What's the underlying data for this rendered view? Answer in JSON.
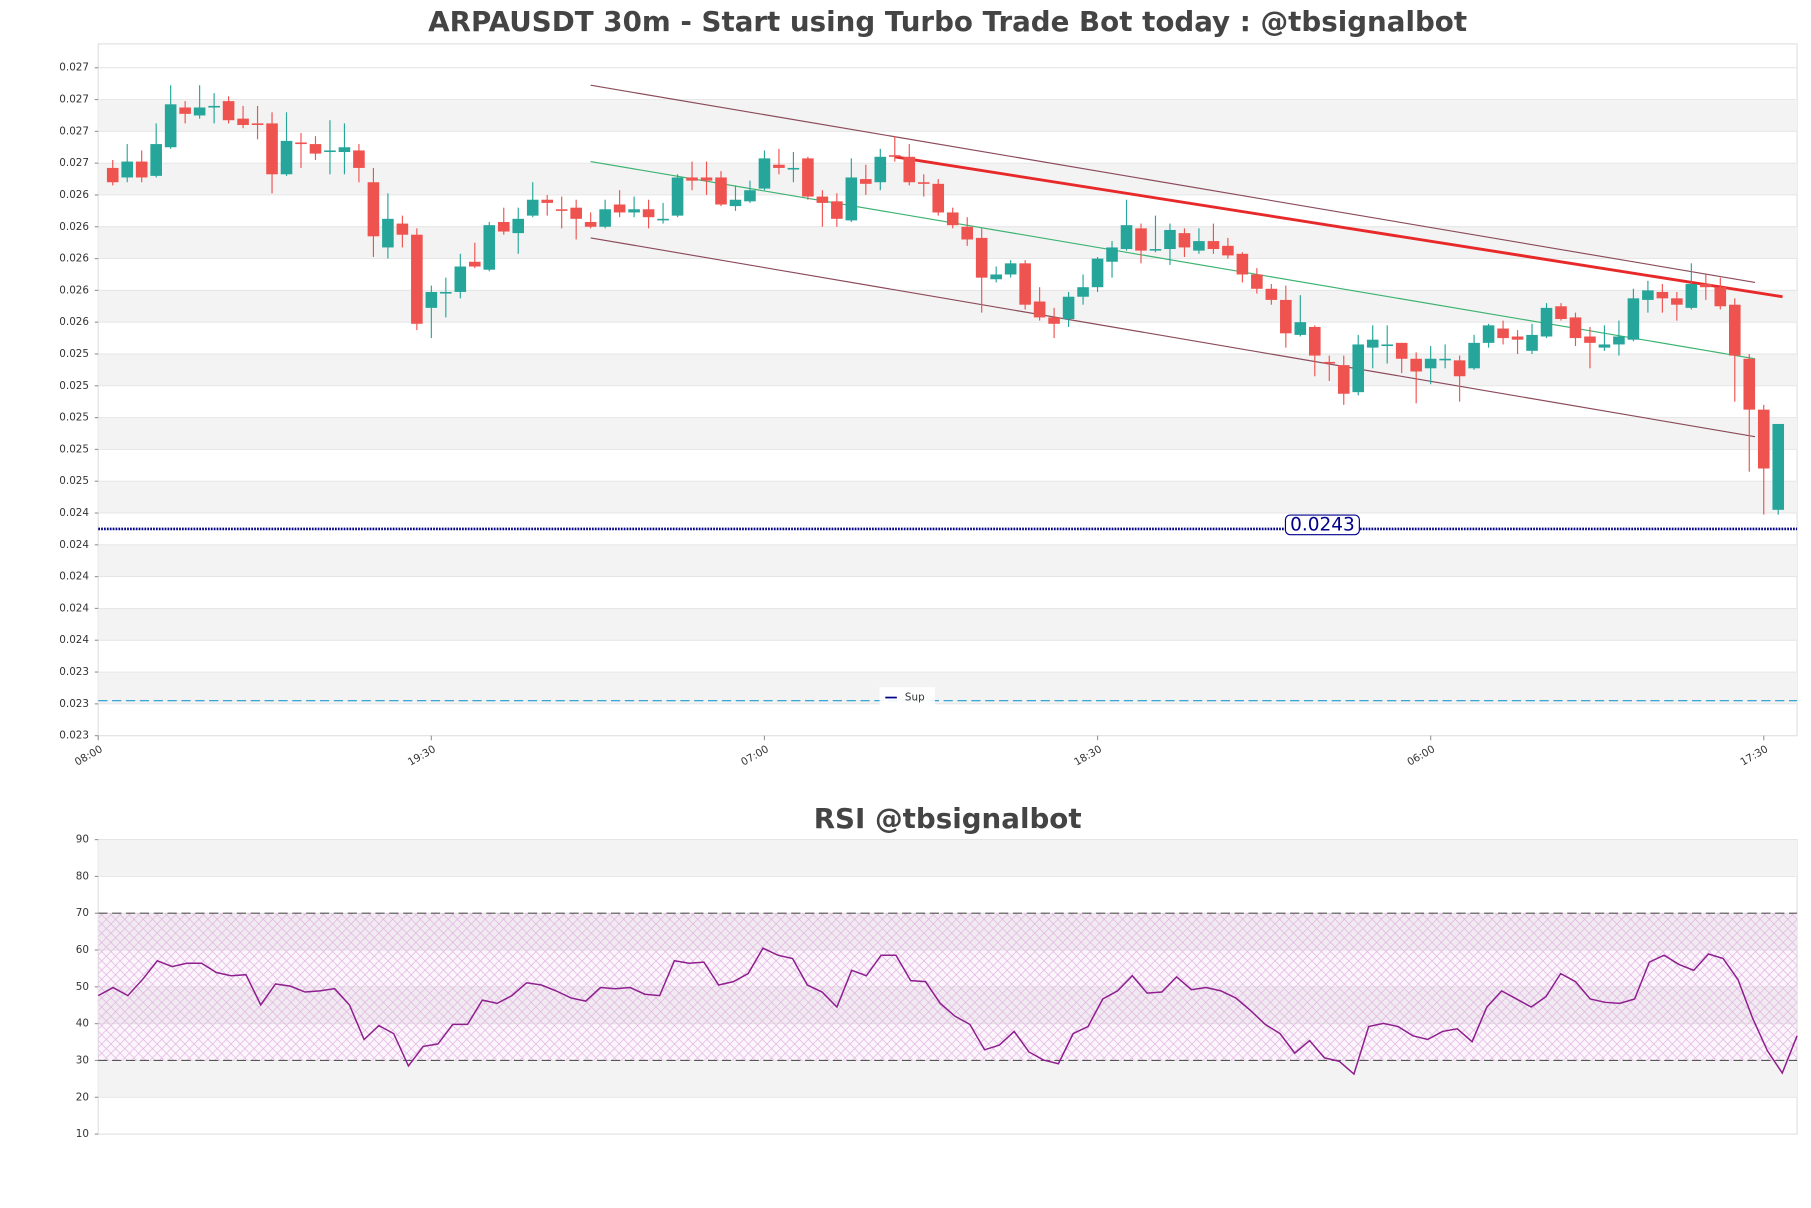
{
  "chart_data": [
    {
      "type": "candlestick",
      "title": "ARPAUSDT 30m - Start using Turbo Trade Bot today : @tbsignalbot",
      "x": [
        1,
        2,
        3,
        4,
        5,
        6,
        7,
        8,
        9,
        10,
        11,
        12,
        13,
        14,
        15,
        16,
        17,
        18,
        19,
        20,
        21,
        22,
        23,
        24,
        25,
        26,
        27,
        28,
        29,
        30,
        31,
        32,
        33,
        34,
        35,
        36,
        37,
        38,
        39,
        40,
        41,
        42,
        43,
        44,
        45,
        46,
        47,
        48,
        49,
        50,
        51,
        52,
        53,
        54,
        55,
        56,
        57,
        58,
        59,
        60,
        61,
        62,
        63,
        64,
        65,
        66,
        67,
        68,
        69,
        70,
        71,
        72,
        73,
        74,
        75,
        76,
        77,
        78,
        79,
        80,
        81,
        82,
        83,
        84,
        85,
        86,
        87,
        88,
        89,
        90,
        91,
        92,
        93,
        94,
        95,
        96,
        97,
        98,
        99,
        100,
        101,
        102,
        103,
        104,
        105,
        106,
        107,
        108,
        109,
        110,
        111,
        112,
        113,
        114,
        115,
        116
      ],
      "open": [
        0.02657,
        0.02651,
        0.02661,
        0.02652,
        0.0267,
        0.02695,
        0.0269,
        0.02695,
        0.02699,
        0.02688,
        0.02685,
        0.02685,
        0.02653,
        0.02673,
        0.02672,
        0.02667,
        0.02667,
        0.02668,
        0.02648,
        0.02607,
        0.02622,
        0.02615,
        0.02569,
        0.02578,
        0.02579,
        0.02598,
        0.02593,
        0.02623,
        0.02616,
        0.02627,
        0.02637,
        0.02631,
        0.02632,
        0.02623,
        0.0262,
        0.02634,
        0.02629,
        0.02631,
        0.02624,
        0.02627,
        0.02651,
        0.02651,
        0.02651,
        0.02633,
        0.02636,
        0.02644,
        0.02659,
        0.02656,
        0.02663,
        0.02639,
        0.02636,
        0.02624,
        0.0265,
        0.02648,
        0.02665,
        0.02664,
        0.02648,
        0.02647,
        0.02629,
        0.0262,
        0.02613,
        0.02587,
        0.0259,
        0.02597,
        0.02573,
        0.02563,
        0.02562,
        0.02576,
        0.02582,
        0.02598,
        0.02606,
        0.02619,
        0.02605,
        0.02606,
        0.02616,
        0.02605,
        0.02611,
        0.02608,
        0.02603,
        0.0259,
        0.02581,
        0.02574,
        0.02552,
        0.02557,
        0.02535,
        0.02533,
        0.02516,
        0.02544,
        0.02545,
        0.02547,
        0.02537,
        0.02531,
        0.02536,
        0.02536,
        0.02531,
        0.02547,
        0.02556,
        0.02551,
        0.02542,
        0.02551,
        0.0257,
        0.02563,
        0.02551,
        0.02544,
        0.02546,
        0.02549,
        0.02574,
        0.02579,
        0.02575,
        0.02569,
        0.02584,
        0.02582,
        0.02571,
        0.02537,
        0.02505,
        0.02442
      ],
      "high": [
        0.02662,
        0.02672,
        0.02668,
        0.02685,
        0.02709,
        0.02699,
        0.02709,
        0.02704,
        0.02702,
        0.02696,
        0.02696,
        0.02692,
        0.02692,
        0.02679,
        0.02677,
        0.02687,
        0.02685,
        0.02672,
        0.02657,
        0.02641,
        0.02627,
        0.02619,
        0.02583,
        0.02588,
        0.02603,
        0.0261,
        0.02623,
        0.02632,
        0.02632,
        0.02648,
        0.0264,
        0.02639,
        0.02637,
        0.02629,
        0.02637,
        0.02643,
        0.02639,
        0.02637,
        0.02635,
        0.02653,
        0.02661,
        0.02661,
        0.02655,
        0.02646,
        0.02649,
        0.02668,
        0.02669,
        0.02667,
        0.02664,
        0.02643,
        0.02641,
        0.02663,
        0.02659,
        0.02669,
        0.02677,
        0.02672,
        0.02653,
        0.0265,
        0.02632,
        0.02626,
        0.02619,
        0.02595,
        0.02599,
        0.02599,
        0.02582,
        0.02569,
        0.02579,
        0.0259,
        0.02601,
        0.02611,
        0.02637,
        0.02622,
        0.02627,
        0.02622,
        0.02619,
        0.02619,
        0.02622,
        0.02613,
        0.02604,
        0.02594,
        0.02584,
        0.02583,
        0.02577,
        0.02558,
        0.02539,
        0.02539,
        0.02552,
        0.02558,
        0.02558,
        0.02547,
        0.02541,
        0.02545,
        0.02546,
        0.02539,
        0.02552,
        0.02559,
        0.02561,
        0.02555,
        0.02559,
        0.02572,
        0.02572,
        0.02566,
        0.02557,
        0.02558,
        0.02561,
        0.02581,
        0.02586,
        0.02584,
        0.02579,
        0.02597,
        0.0259,
        0.02588,
        0.02575,
        0.0254,
        0.02508,
        0.02496
      ],
      "low": [
        0.02646,
        0.02648,
        0.02648,
        0.02651,
        0.02669,
        0.02685,
        0.02688,
        0.02685,
        0.02685,
        0.02682,
        0.02675,
        0.02641,
        0.02652,
        0.02657,
        0.02662,
        0.02653,
        0.02653,
        0.02648,
        0.02601,
        0.026,
        0.02607,
        0.02555,
        0.0255,
        0.02563,
        0.02575,
        0.02594,
        0.02592,
        0.02615,
        0.02603,
        0.02626,
        0.02627,
        0.02619,
        0.02612,
        0.02619,
        0.02619,
        0.02626,
        0.02626,
        0.02619,
        0.02622,
        0.02626,
        0.02643,
        0.0264,
        0.02633,
        0.0263,
        0.02635,
        0.02643,
        0.02653,
        0.02648,
        0.02637,
        0.0262,
        0.0262,
        0.02623,
        0.0264,
        0.02643,
        0.02661,
        0.02646,
        0.02639,
        0.02627,
        0.02619,
        0.02608,
        0.02566,
        0.02585,
        0.02588,
        0.02568,
        0.02561,
        0.0255,
        0.02557,
        0.02571,
        0.02579,
        0.02588,
        0.02605,
        0.02597,
        0.02604,
        0.02596,
        0.02601,
        0.02603,
        0.02603,
        0.026,
        0.02585,
        0.02578,
        0.02571,
        0.02544,
        0.02551,
        0.02526,
        0.02523,
        0.02508,
        0.02514,
        0.02531,
        0.02534,
        0.02528,
        0.02509,
        0.02521,
        0.02531,
        0.0251,
        0.0253,
        0.02544,
        0.02546,
        0.0254,
        0.0254,
        0.0255,
        0.02561,
        0.02545,
        0.02531,
        0.02542,
        0.02539,
        0.02548,
        0.02566,
        0.02566,
        0.02561,
        0.02568,
        0.02574,
        0.02568,
        0.0251,
        0.02466,
        0.02439,
        0.02439
      ],
      "close": [
        0.02648,
        0.02661,
        0.02651,
        0.02672,
        0.02697,
        0.02691,
        0.02695,
        0.02696,
        0.02687,
        0.02684,
        0.02684,
        0.02653,
        0.02674,
        0.02672,
        0.02666,
        0.02668,
        0.0267,
        0.02657,
        0.02614,
        0.02625,
        0.02615,
        0.02559,
        0.02579,
        0.02579,
        0.02595,
        0.02595,
        0.02621,
        0.02617,
        0.02625,
        0.02637,
        0.02635,
        0.0263,
        0.02625,
        0.0262,
        0.02631,
        0.02629,
        0.02631,
        0.02626,
        0.02625,
        0.02651,
        0.02649,
        0.02649,
        0.02634,
        0.02637,
        0.02643,
        0.02663,
        0.02657,
        0.02657,
        0.02639,
        0.02635,
        0.02625,
        0.02651,
        0.02647,
        0.02664,
        0.02664,
        0.02648,
        0.02647,
        0.02629,
        0.02621,
        0.02612,
        0.02588,
        0.0259,
        0.02597,
        0.02571,
        0.02563,
        0.02559,
        0.02576,
        0.02582,
        0.026,
        0.02607,
        0.02621,
        0.02605,
        0.02606,
        0.02618,
        0.02607,
        0.02611,
        0.02606,
        0.02602,
        0.0259,
        0.02581,
        0.02574,
        0.02553,
        0.0256,
        0.02539,
        0.02534,
        0.02515,
        0.02546,
        0.02549,
        0.02546,
        0.02537,
        0.02529,
        0.02537,
        0.02537,
        0.02526,
        0.02547,
        0.02558,
        0.0255,
        0.02549,
        0.02552,
        0.02569,
        0.02562,
        0.0255,
        0.02547,
        0.02546,
        0.02551,
        0.02575,
        0.0258,
        0.02575,
        0.02571,
        0.02584,
        0.02582,
        0.0257,
        0.02539,
        0.02505,
        0.02468,
        0.02496
      ],
      "up_color": "#26a69a",
      "down_color": "#ef5350",
      "xlim": [
        0,
        117.3
      ],
      "xticks": [
        {
          "value": 0,
          "label": "08:00"
        },
        {
          "value": 23,
          "label": "19:30"
        },
        {
          "value": 46,
          "label": "07:00"
        },
        {
          "value": 69,
          "label": "18:30"
        },
        {
          "value": 92,
          "label": "06:00"
        },
        {
          "value": 115,
          "label": "17:30"
        }
      ],
      "ylim": [
        0.023,
        0.02735
      ],
      "yticks": [
        0.023,
        {
          "value": 0.0232,
          "label": "0.023"
        },
        {
          "value": 0.0234,
          "label": "0.023"
        },
        {
          "value": 0.0236,
          "label": "0.024"
        },
        {
          "value": 0.0238,
          "label": "0.024"
        },
        0.024,
        {
          "value": 0.0242,
          "label": "0.024"
        },
        {
          "value": 0.0244,
          "label": "0.024"
        },
        {
          "value": 0.0246,
          "label": "0.025"
        },
        {
          "value": 0.0248,
          "label": "0.025"
        },
        0.025,
        {
          "value": 0.0252,
          "label": "0.025"
        },
        {
          "value": 0.0254,
          "label": "0.025"
        },
        {
          "value": 0.0256,
          "label": "0.026"
        },
        {
          "value": 0.0258,
          "label": "0.026"
        },
        0.026,
        {
          "value": 0.0262,
          "label": "0.026"
        },
        {
          "value": 0.0264,
          "label": "0.026"
        },
        {
          "value": 0.0266,
          "label": "0.027"
        },
        {
          "value": 0.0268,
          "label": "0.027"
        },
        0.027,
        {
          "value": 0.0272,
          "label": "0.027"
        }
      ],
      "trendlines": [
        {
          "color": "#8b4a5a",
          "width": 1,
          "x": [
            34,
            114.4
          ],
          "values": [
            0.02709,
            0.02585
          ]
        },
        {
          "color": "#8b4a5a",
          "width": 1,
          "x": [
            34,
            114.4
          ],
          "values": [
            0.02613,
            0.02488
          ]
        },
        {
          "color": "#3cb371",
          "width": 1,
          "x": [
            34,
            114.4
          ],
          "values": [
            0.02661,
            0.02537
          ]
        },
        {
          "color": "#e8292a",
          "width": 2.5,
          "x": [
            55,
            116.3
          ],
          "values": [
            0.02664,
            0.02576
          ]
        }
      ],
      "hlines": [
        {
          "name": "Sup",
          "value": 0.0243,
          "color": "#00008b",
          "style": "dotted"
        },
        {
          "value": 0.02322,
          "color": "#1f9bcf",
          "style": "dashed"
        }
      ],
      "legend": "lower center"
    },
    {
      "type": "line",
      "title": "RSI @tbsignalbot",
      "color": "#8e1f8e",
      "values": [
        47.6,
        49.8,
        47.6,
        52.0,
        57.1,
        55.5,
        56.4,
        56.4,
        53.9,
        53.0,
        53.3,
        45.1,
        50.8,
        50.2,
        48.6,
        48.9,
        49.5,
        45.1,
        35.7,
        39.5,
        37.3,
        28.5,
        33.8,
        34.5,
        39.8,
        39.8,
        46.4,
        45.5,
        47.6,
        51.1,
        50.5,
        48.9,
        47.0,
        46.1,
        49.8,
        49.5,
        49.8,
        48.0,
        47.6,
        57.1,
        56.4,
        56.7,
        50.5,
        51.4,
        53.6,
        60.5,
        58.6,
        57.7,
        50.5,
        48.6,
        44.5,
        54.5,
        53.0,
        58.6,
        58.6,
        51.7,
        51.4,
        45.5,
        42.0,
        39.8,
        32.9,
        34.2,
        37.9,
        32.3,
        30.1,
        29.1,
        37.3,
        39.2,
        46.7,
        48.9,
        53.0,
        48.3,
        48.6,
        52.7,
        49.2,
        49.8,
        48.9,
        47.0,
        43.6,
        39.8,
        37.3,
        32.0,
        35.4,
        30.7,
        29.8,
        26.3,
        39.2,
        40.1,
        39.2,
        36.7,
        35.7,
        37.9,
        38.6,
        35.1,
        44.5,
        48.9,
        46.7,
        44.5,
        47.3,
        53.6,
        51.4,
        46.7,
        45.8,
        45.5,
        46.7,
        56.7,
        58.6,
        56.1,
        54.5,
        58.9,
        57.7,
        52.0,
        41.4,
        32.6,
        26.6,
        36.7
      ],
      "ylim": [
        10,
        90
      ],
      "yticks": [
        10,
        20,
        30,
        40,
        50,
        60,
        70,
        80,
        90
      ],
      "hlines": [
        70,
        30
      ],
      "band": [
        30,
        70
      ],
      "band_color": "#e6b3e6"
    }
  ]
}
